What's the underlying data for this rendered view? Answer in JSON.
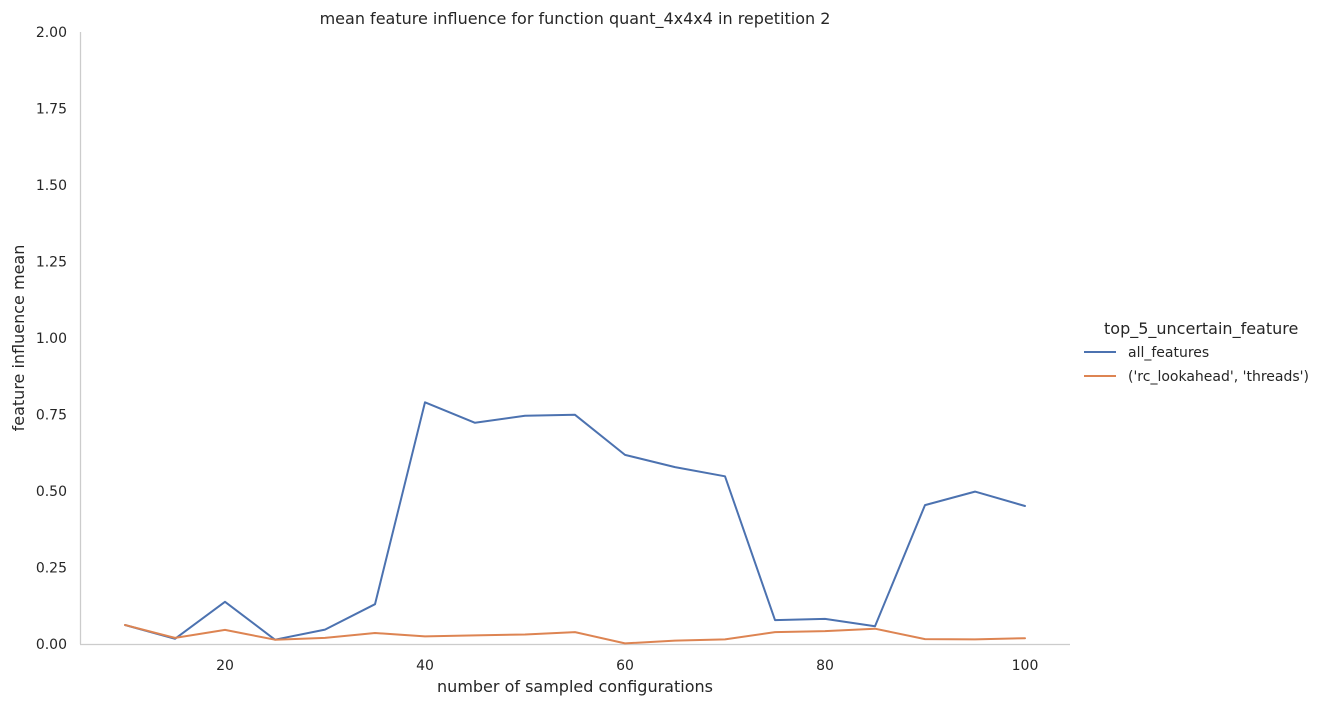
{
  "chart_data": {
    "type": "line",
    "title": "mean feature influence for function quant_4x4x4 in repetition 2",
    "xlabel": "number of sampled configurations",
    "ylabel": "feature influence mean",
    "xlim": [
      5.5,
      104.5
    ],
    "ylim": [
      0,
      2
    ],
    "xticks": [
      20,
      40,
      60,
      80,
      100
    ],
    "yticks": [
      0,
      0.25,
      0.5,
      0.75,
      1.0,
      1.25,
      1.5,
      1.75,
      2.0
    ],
    "xtick_labels": [
      "20",
      "40",
      "60",
      "80",
      "100"
    ],
    "ytick_labels": [
      "0.00",
      "0.25",
      "0.50",
      "0.75",
      "1.00",
      "1.25",
      "1.50",
      "1.75",
      "2.00"
    ],
    "grid": false,
    "legend_title": "top_5_uncertain_feature",
    "legend_placement": "right",
    "x": [
      10,
      15,
      20,
      25,
      30,
      35,
      40,
      45,
      50,
      55,
      60,
      65,
      70,
      75,
      80,
      85,
      90,
      95,
      100
    ],
    "series": [
      {
        "name": "all_features",
        "color": "#4c72b0",
        "values": [
          0.062,
          0.017,
          0.138,
          0.014,
          0.047,
          0.13,
          0.79,
          0.723,
          0.746,
          0.749,
          0.618,
          0.578,
          0.548,
          0.078,
          0.082,
          0.058,
          0.454,
          0.498,
          0.451
        ]
      },
      {
        "name": "('rc_lookahead', 'threads')",
        "color": "#dd8452",
        "values": [
          0.062,
          0.02,
          0.046,
          0.014,
          0.02,
          0.036,
          0.025,
          0.028,
          0.031,
          0.039,
          0.002,
          0.011,
          0.015,
          0.039,
          0.042,
          0.05,
          0.016,
          0.015,
          0.019
        ]
      }
    ]
  }
}
